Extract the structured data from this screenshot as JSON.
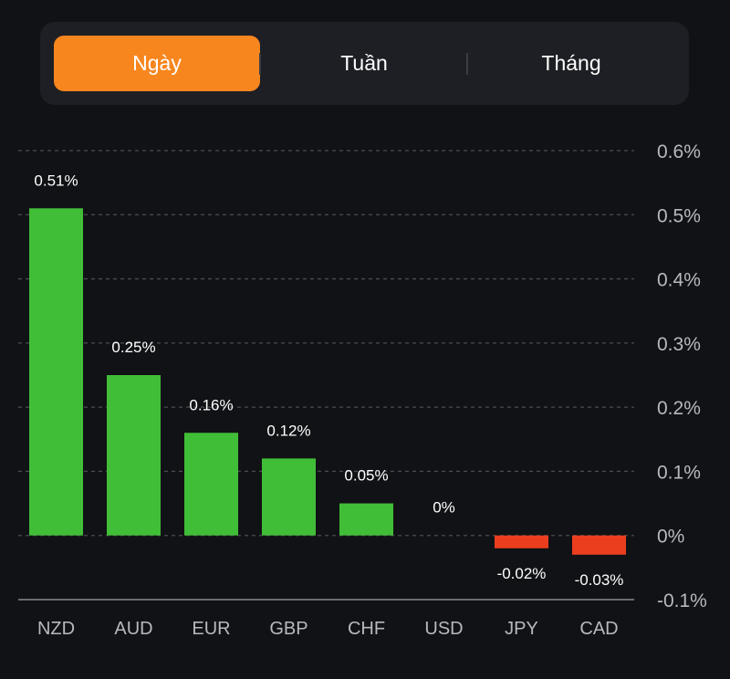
{
  "tabs": [
    {
      "label": "Ngày",
      "active": true
    },
    {
      "label": "Tuần",
      "active": false
    },
    {
      "label": "Tháng",
      "active": false
    }
  ],
  "colors": {
    "positive": "#41be37",
    "negative": "#ea3e1e",
    "accent": "#f7861e",
    "grid": "#4a4c52"
  },
  "chart_data": {
    "type": "bar",
    "categories": [
      "NZD",
      "AUD",
      "EUR",
      "GBP",
      "CHF",
      "USD",
      "JPY",
      "CAD"
    ],
    "values": [
      0.51,
      0.25,
      0.16,
      0.12,
      0.05,
      0,
      -0.02,
      -0.03
    ],
    "data_labels": [
      "0.51%",
      "0.25%",
      "0.16%",
      "0.12%",
      "0.05%",
      "0%",
      "-0.02%",
      "-0.03%"
    ],
    "y_ticks": [
      0.6,
      0.5,
      0.4,
      0.3,
      0.2,
      0.1,
      0,
      -0.1
    ],
    "y_tick_labels": [
      "0.6%",
      "0.5%",
      "0.4%",
      "0.3%",
      "0.2%",
      "0.1%",
      "0%",
      "-0.1%"
    ],
    "ylim": [
      -0.1,
      0.6
    ],
    "grid": true,
    "axis_position": "right"
  }
}
